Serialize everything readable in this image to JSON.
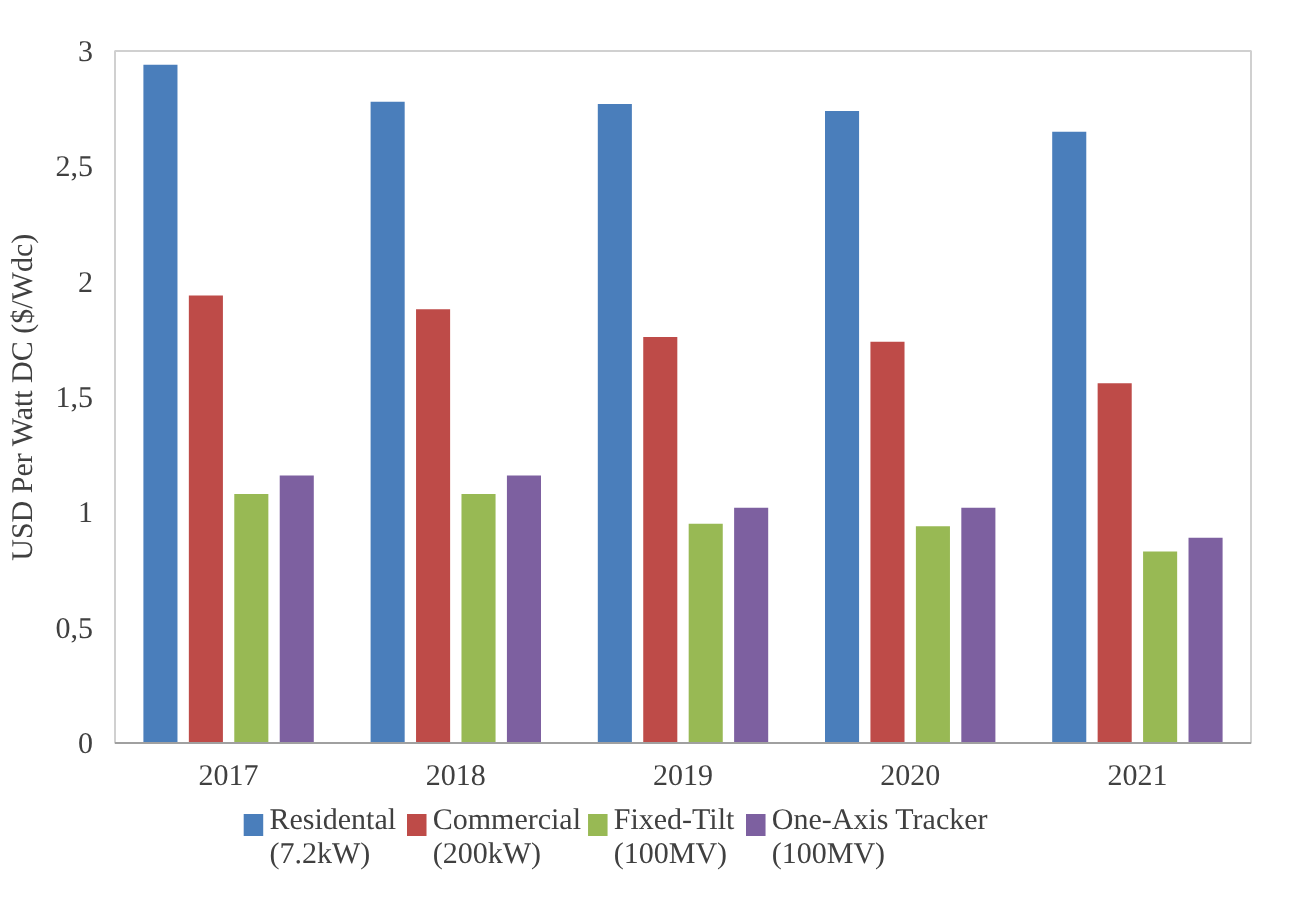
{
  "chart_data": {
    "type": "bar",
    "ylabel": "USD Per Watt DC ($/Wdc)",
    "categories": [
      "2017",
      "2018",
      "2019",
      "2020",
      "2021"
    ],
    "series": [
      {
        "name": "Residental\n(7.2kW)",
        "color": "#4a7ebb",
        "values": [
          2.94,
          2.78,
          2.77,
          2.74,
          2.65
        ]
      },
      {
        "name": "Commercial\n(200kW)",
        "color": "#be4b48",
        "values": [
          1.94,
          1.88,
          1.76,
          1.74,
          1.56
        ]
      },
      {
        "name": "Fixed-Tilt\n(100MV)",
        "color": "#98b954",
        "values": [
          1.08,
          1.08,
          0.95,
          0.94,
          0.83
        ]
      },
      {
        "name": "One-Axis Tracker\n(100MV)",
        "color": "#7d60a0",
        "values": [
          1.16,
          1.16,
          1.02,
          1.02,
          0.89
        ]
      }
    ],
    "ylim": [
      0,
      3
    ],
    "yticks": [
      0,
      {
        "value": 0.5,
        "label": "0,5"
      },
      1,
      {
        "value": 1.5,
        "label": "1,5"
      },
      2,
      {
        "value": 2.5,
        "label": "2,5"
      },
      3
    ],
    "grid": false,
    "legend": "bottom"
  }
}
